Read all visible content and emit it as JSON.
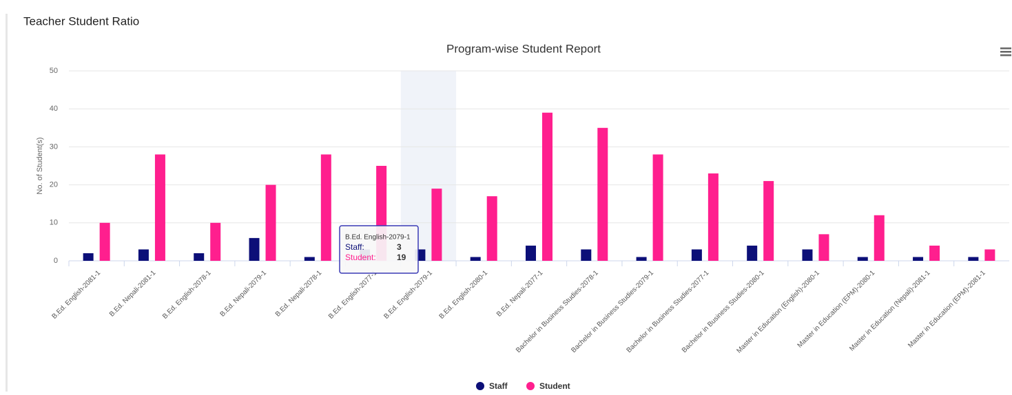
{
  "page_title": "Teacher Student Ratio",
  "chart_data": {
    "type": "bar",
    "title": "Program-wise Student Report",
    "y_label": "No. of Student(s)",
    "categories": [
      "B.Ed. English-2081-1",
      "B.Ed. Nepali-2081-1",
      "B.Ed. English-2078-1",
      "B.Ed. Nepali-2079-1",
      "B.Ed. Nepali-2078-1",
      "B.Ed. English-2077-1",
      "B.Ed. English-2079-1",
      "B.Ed. English-2080-1",
      "B.Ed. Nepali-2077-1",
      "Bachelor in Business Studies-2078-1",
      "Bachelor in Business Studies-2079-1",
      "Bachelor in Business Studies-2077-1",
      "Bachelor in Business Studies-2080-1",
      "Master in Education (English)-2080-1",
      "Master in Education (EPM)-2080-1",
      "Master in Education (Nepali)-2081-1",
      "Master in Education (EPM)-2081-1"
    ],
    "series": [
      {
        "name": "Staff",
        "color": "#0c0f78",
        "values": [
          2,
          3,
          2,
          6,
          1,
          3,
          3,
          1,
          4,
          3,
          1,
          3,
          4,
          3,
          1,
          1,
          1
        ]
      },
      {
        "name": "Student",
        "color": "#ff1f8e",
        "values": [
          10,
          28,
          10,
          20,
          28,
          25,
          19,
          17,
          39,
          35,
          28,
          23,
          21,
          7,
          12,
          4,
          3
        ]
      }
    ],
    "ylim": [
      0,
      50
    ],
    "yticks": [
      0,
      10,
      20,
      30,
      40,
      50
    ],
    "grid": true,
    "legend": "bottom",
    "tooltip": {
      "title": "B.Ed. English-2079-1",
      "rows": [
        {
          "label": "Staff:",
          "value": 3
        },
        {
          "label": "Student:",
          "value": 19
        }
      ]
    }
  }
}
